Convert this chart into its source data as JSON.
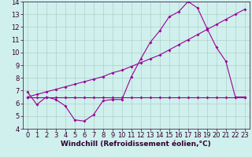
{
  "xlabel": "Windchill (Refroidissement éolien,°C)",
  "background_color": "#cff0ec",
  "grid_color": "#b0d0cc",
  "line_color": "#990099",
  "xlim": [
    -0.5,
    23.5
  ],
  "ylim": [
    4,
    14
  ],
  "xticks": [
    0,
    1,
    2,
    3,
    4,
    5,
    6,
    7,
    8,
    9,
    10,
    11,
    12,
    13,
    14,
    15,
    16,
    17,
    18,
    19,
    20,
    21,
    22,
    23
  ],
  "yticks": [
    4,
    5,
    6,
    7,
    8,
    9,
    10,
    11,
    12,
    13,
    14
  ],
  "line1_x": [
    0,
    1,
    2,
    3,
    4,
    5,
    6,
    7,
    8,
    9,
    10,
    11,
    12,
    13,
    14,
    15,
    16,
    17,
    18,
    19,
    20,
    21,
    22,
    23
  ],
  "line1_y": [
    6.9,
    5.9,
    6.5,
    6.3,
    5.8,
    4.7,
    4.6,
    5.1,
    6.2,
    6.3,
    6.3,
    8.1,
    9.5,
    10.8,
    11.7,
    12.8,
    13.2,
    14.0,
    13.5,
    11.9,
    10.4,
    9.3,
    6.5,
    6.5
  ],
  "line2_x": [
    0,
    1,
    2,
    3,
    4,
    5,
    6,
    7,
    8,
    9,
    10,
    11,
    12,
    13,
    14,
    15,
    16,
    17,
    18,
    19,
    20,
    21,
    22,
    23
  ],
  "line2_y": [
    6.5,
    6.5,
    6.5,
    6.5,
    6.5,
    6.5,
    6.5,
    6.5,
    6.5,
    6.5,
    6.5,
    6.5,
    6.5,
    6.5,
    6.5,
    6.5,
    6.5,
    6.5,
    6.5,
    6.5,
    6.5,
    6.5,
    6.5,
    6.5
  ],
  "line3_x": [
    0,
    1,
    2,
    3,
    4,
    5,
    6,
    7,
    8,
    9,
    10,
    11,
    12,
    13,
    14,
    15,
    16,
    17,
    18,
    19,
    20,
    21,
    22,
    23
  ],
  "line3_y": [
    6.5,
    6.7,
    6.9,
    7.1,
    7.3,
    7.5,
    7.7,
    7.9,
    8.1,
    8.4,
    8.6,
    8.9,
    9.2,
    9.5,
    9.8,
    10.2,
    10.6,
    11.0,
    11.4,
    11.8,
    12.2,
    12.6,
    13.0,
    13.4
  ],
  "marker": "D",
  "markersize": 2.0,
  "linewidth": 0.8,
  "font_size": 6,
  "xlabel_fontsize": 6.5
}
